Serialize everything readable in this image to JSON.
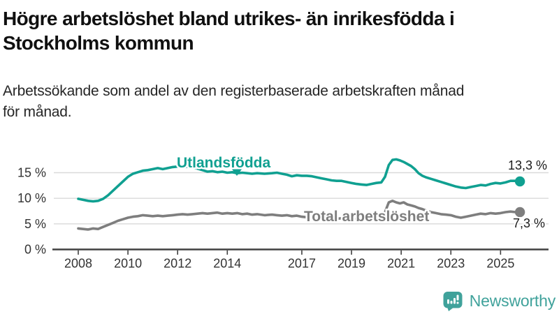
{
  "header": {
    "title": "Högre arbetslöshet bland utrikes- än inrikesfödda i\nStockholms kommun",
    "subtitle": "Arbetssökande som andel av den registerbaserade arbetskraften månad\nför månad."
  },
  "branding": {
    "name": "Newsworthy",
    "icon": "newsworthy-chart-bubble-icon",
    "color": "#40A29B"
  },
  "chart_data": {
    "type": "line",
    "unit": "percent",
    "grid": "horizontal",
    "legend": "inline-labels",
    "colors": {
      "grid": "#DADADA",
      "axis": "#404040",
      "tick_text": "#333333",
      "value_label_text": "#1b1b1b"
    },
    "x_axis": {
      "ticks": [
        2008,
        2010,
        2012,
        2014,
        2017,
        2019,
        2021,
        2023,
        2025
      ],
      "labels": [
        "2008",
        "2010",
        "2012",
        "2014",
        "2017",
        "2019",
        "2021",
        "2023",
        "2025"
      ],
      "range": [
        2007,
        2026
      ]
    },
    "y_axis": {
      "ticks": [
        0,
        5,
        10,
        15
      ],
      "labels": [
        "0 %",
        "5 %",
        "10 %",
        "15 %"
      ],
      "range": [
        0,
        18.5
      ]
    },
    "series": [
      {
        "name": "Utlandsfödda",
        "color": "#10A091",
        "end_value": 13.3,
        "end_label": "13,3 %",
        "points": [
          [
            2008.0,
            9.9
          ],
          [
            2008.2,
            9.7
          ],
          [
            2008.4,
            9.5
          ],
          [
            2008.6,
            9.4
          ],
          [
            2008.8,
            9.5
          ],
          [
            2009.0,
            9.9
          ],
          [
            2009.2,
            10.6
          ],
          [
            2009.4,
            11.5
          ],
          [
            2009.6,
            12.4
          ],
          [
            2009.8,
            13.3
          ],
          [
            2010.0,
            14.2
          ],
          [
            2010.2,
            14.8
          ],
          [
            2010.4,
            15.1
          ],
          [
            2010.6,
            15.4
          ],
          [
            2010.8,
            15.5
          ],
          [
            2011.0,
            15.7
          ],
          [
            2011.2,
            15.9
          ],
          [
            2011.4,
            15.7
          ],
          [
            2011.6,
            15.9
          ],
          [
            2011.8,
            16.1
          ],
          [
            2012.0,
            16.2
          ],
          [
            2012.2,
            16.0
          ],
          [
            2012.4,
            16.2
          ],
          [
            2012.6,
            16.0
          ],
          [
            2012.8,
            15.8
          ],
          [
            2013.0,
            15.5
          ],
          [
            2013.2,
            15.2
          ],
          [
            2013.4,
            15.3
          ],
          [
            2013.6,
            15.1
          ],
          [
            2013.8,
            15.2
          ],
          [
            2014.0,
            15.0
          ],
          [
            2014.2,
            15.1
          ],
          [
            2014.4,
            14.9
          ],
          [
            2014.6,
            15.0
          ],
          [
            2014.8,
            14.9
          ],
          [
            2015.0,
            14.8
          ],
          [
            2015.2,
            14.9
          ],
          [
            2015.5,
            14.8
          ],
          [
            2015.8,
            14.9
          ],
          [
            2016.0,
            15.0
          ],
          [
            2016.2,
            14.8
          ],
          [
            2016.4,
            14.6
          ],
          [
            2016.6,
            14.3
          ],
          [
            2016.8,
            14.5
          ],
          [
            2017.0,
            14.4
          ],
          [
            2017.2,
            14.4
          ],
          [
            2017.4,
            14.3
          ],
          [
            2017.6,
            14.1
          ],
          [
            2017.8,
            13.9
          ],
          [
            2018.0,
            13.7
          ],
          [
            2018.2,
            13.5
          ],
          [
            2018.4,
            13.4
          ],
          [
            2018.6,
            13.4
          ],
          [
            2018.8,
            13.2
          ],
          [
            2019.0,
            13.0
          ],
          [
            2019.2,
            12.8
          ],
          [
            2019.4,
            12.7
          ],
          [
            2019.6,
            12.6
          ],
          [
            2019.8,
            12.8
          ],
          [
            2020.0,
            13.0
          ],
          [
            2020.2,
            13.1
          ],
          [
            2020.35,
            14.2
          ],
          [
            2020.5,
            16.5
          ],
          [
            2020.65,
            17.5
          ],
          [
            2020.8,
            17.6
          ],
          [
            2020.95,
            17.4
          ],
          [
            2021.1,
            17.1
          ],
          [
            2021.25,
            16.7
          ],
          [
            2021.4,
            16.3
          ],
          [
            2021.55,
            15.7
          ],
          [
            2021.7,
            14.9
          ],
          [
            2021.85,
            14.4
          ],
          [
            2022.0,
            14.1
          ],
          [
            2022.2,
            13.8
          ],
          [
            2022.4,
            13.5
          ],
          [
            2022.6,
            13.2
          ],
          [
            2022.8,
            12.9
          ],
          [
            2023.0,
            12.6
          ],
          [
            2023.2,
            12.3
          ],
          [
            2023.4,
            12.1
          ],
          [
            2023.6,
            12.0
          ],
          [
            2023.8,
            12.2
          ],
          [
            2024.0,
            12.4
          ],
          [
            2024.2,
            12.6
          ],
          [
            2024.4,
            12.5
          ],
          [
            2024.6,
            12.8
          ],
          [
            2024.8,
            13.0
          ],
          [
            2025.0,
            12.9
          ],
          [
            2025.2,
            13.1
          ],
          [
            2025.4,
            13.4
          ],
          [
            2025.6,
            13.4
          ],
          [
            2025.78,
            13.3
          ]
        ]
      },
      {
        "name": "Total arbetslöshet",
        "color": "#7E7E7E",
        "end_value": 7.3,
        "end_label": "7,3 %",
        "points": [
          [
            2008.0,
            4.1
          ],
          [
            2008.2,
            4.0
          ],
          [
            2008.4,
            3.9
          ],
          [
            2008.6,
            4.1
          ],
          [
            2008.8,
            4.0
          ],
          [
            2009.0,
            4.4
          ],
          [
            2009.2,
            4.8
          ],
          [
            2009.4,
            5.2
          ],
          [
            2009.6,
            5.6
          ],
          [
            2009.8,
            5.9
          ],
          [
            2010.0,
            6.2
          ],
          [
            2010.2,
            6.4
          ],
          [
            2010.4,
            6.5
          ],
          [
            2010.6,
            6.7
          ],
          [
            2010.8,
            6.6
          ],
          [
            2011.0,
            6.5
          ],
          [
            2011.2,
            6.6
          ],
          [
            2011.4,
            6.5
          ],
          [
            2011.6,
            6.6
          ],
          [
            2011.8,
            6.7
          ],
          [
            2012.0,
            6.8
          ],
          [
            2012.2,
            6.9
          ],
          [
            2012.4,
            6.8
          ],
          [
            2012.6,
            6.9
          ],
          [
            2012.8,
            7.0
          ],
          [
            2013.0,
            7.1
          ],
          [
            2013.2,
            7.0
          ],
          [
            2013.4,
            7.1
          ],
          [
            2013.6,
            7.2
          ],
          [
            2013.8,
            7.0
          ],
          [
            2014.0,
            7.1
          ],
          [
            2014.2,
            7.0
          ],
          [
            2014.4,
            7.1
          ],
          [
            2014.6,
            6.9
          ],
          [
            2014.8,
            7.0
          ],
          [
            2015.0,
            6.8
          ],
          [
            2015.2,
            6.9
          ],
          [
            2015.5,
            6.7
          ],
          [
            2015.8,
            6.8
          ],
          [
            2016.0,
            6.7
          ],
          [
            2016.2,
            6.6
          ],
          [
            2016.4,
            6.7
          ],
          [
            2016.6,
            6.5
          ],
          [
            2016.8,
            6.6
          ],
          [
            2017.0,
            6.4
          ],
          [
            2017.2,
            6.3
          ],
          [
            2017.4,
            6.2
          ],
          [
            2017.6,
            6.2
          ],
          [
            2017.8,
            6.1
          ],
          [
            2018.0,
            6.1
          ],
          [
            2018.2,
            6.0
          ],
          [
            2018.4,
            6.0
          ],
          [
            2018.6,
            6.1
          ],
          [
            2018.8,
            6.0
          ],
          [
            2019.0,
            5.9
          ],
          [
            2019.2,
            6.0
          ],
          [
            2019.4,
            6.0
          ],
          [
            2019.6,
            6.1
          ],
          [
            2019.8,
            6.1
          ],
          [
            2020.0,
            6.1
          ],
          [
            2020.2,
            6.3
          ],
          [
            2020.35,
            7.3
          ],
          [
            2020.5,
            9.2
          ],
          [
            2020.65,
            9.5
          ],
          [
            2020.8,
            9.2
          ],
          [
            2020.95,
            9.0
          ],
          [
            2021.1,
            9.2
          ],
          [
            2021.25,
            8.8
          ],
          [
            2021.4,
            8.6
          ],
          [
            2021.55,
            8.4
          ],
          [
            2021.7,
            8.1
          ],
          [
            2021.85,
            7.9
          ],
          [
            2022.0,
            7.6
          ],
          [
            2022.2,
            7.3
          ],
          [
            2022.4,
            7.1
          ],
          [
            2022.6,
            6.9
          ],
          [
            2022.8,
            6.8
          ],
          [
            2023.0,
            6.7
          ],
          [
            2023.2,
            6.4
          ],
          [
            2023.4,
            6.2
          ],
          [
            2023.6,
            6.4
          ],
          [
            2023.8,
            6.6
          ],
          [
            2024.0,
            6.8
          ],
          [
            2024.2,
            7.0
          ],
          [
            2024.4,
            6.9
          ],
          [
            2024.6,
            7.1
          ],
          [
            2024.8,
            7.0
          ],
          [
            2025.0,
            7.1
          ],
          [
            2025.2,
            7.3
          ],
          [
            2025.4,
            7.4
          ],
          [
            2025.6,
            7.3
          ],
          [
            2025.78,
            7.3
          ]
        ]
      }
    ]
  }
}
